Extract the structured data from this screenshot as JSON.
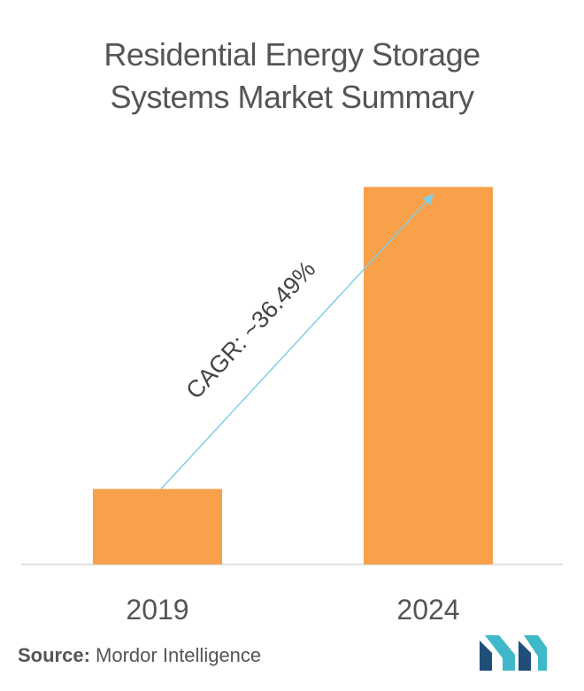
{
  "title_lines": [
    "Residential Energy Storage",
    "Systems Market Summary"
  ],
  "source": {
    "label": "Source:",
    "text": "Mordor Intelligence"
  },
  "colors": {
    "bar": "#F9A04A",
    "axis": "#D9D9D9",
    "arrow": "#7FCFE6",
    "logo_dark": "#1F4E79",
    "logo_light": "#3FB8C9"
  },
  "icon": "mordor-intelligence-logo",
  "chart_data": {
    "type": "bar",
    "title": "Residential Energy Storage Systems Market Summary",
    "categories": [
      "2019",
      "2024"
    ],
    "values": [
      0.2,
      1.0
    ],
    "xlabel": "",
    "ylabel": "",
    "ylim": [
      0,
      1.05
    ],
    "grid": false,
    "annotation": "CAGR: ~36.49%"
  }
}
